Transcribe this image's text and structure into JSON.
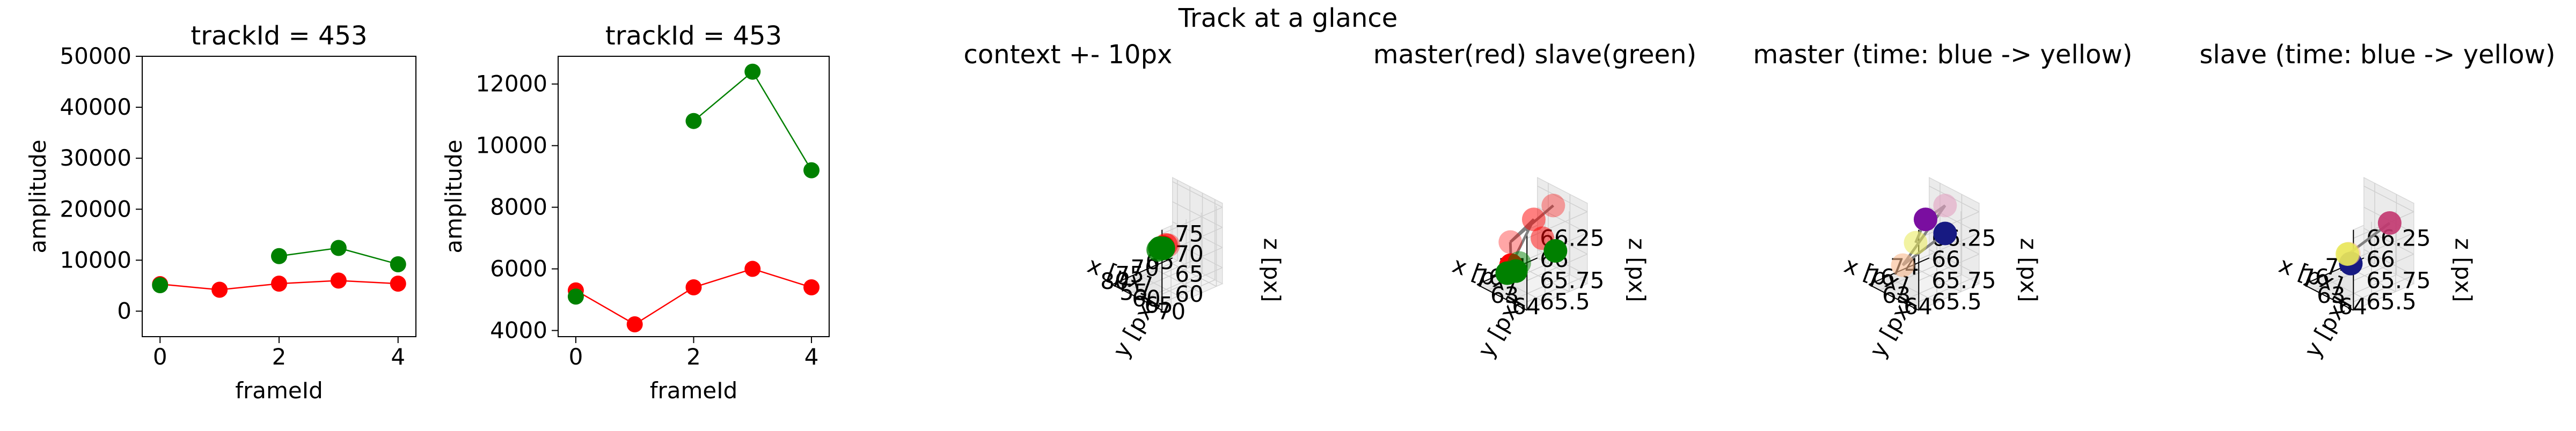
{
  "suptitle": "Track at a glance",
  "colors": {
    "master": "#ff0000",
    "slave": "#008000",
    "path": "#808080",
    "pane_left": "#ebebeb",
    "pane_right": "#f2f2f2",
    "pane_floor": "#e6e6e6",
    "grid": "#d0d0d0"
  },
  "chart_data": [
    {
      "type": "line",
      "title": "trackId = 453",
      "xlabel": "frameId",
      "ylabel": "amplitude",
      "xlim": [
        -0.3,
        4.3
      ],
      "ylim": [
        -5000,
        50000
      ],
      "xticks": [
        0,
        2,
        4
      ],
      "yticks": [
        0,
        10000,
        20000,
        30000,
        40000,
        50000
      ],
      "grid": false,
      "series": [
        {
          "color": "#ff0000",
          "x": [
            0,
            1,
            2,
            3,
            4
          ],
          "y": [
            5300,
            4200,
            5400,
            6000,
            5400
          ]
        },
        {
          "color": "#008000",
          "x": [
            0
          ],
          "y": [
            5100
          ]
        },
        {
          "color": "#008000",
          "x": [
            2,
            3,
            4
          ],
          "y": [
            10800,
            12400,
            9200
          ]
        }
      ]
    },
    {
      "type": "line",
      "title": "trackId = 453",
      "xlabel": "frameId",
      "ylabel": "amplitude",
      "xlim": [
        -0.3,
        4.3
      ],
      "ylim": [
        3800,
        12900
      ],
      "xticks": [
        0,
        2,
        4
      ],
      "yticks": [
        4000,
        6000,
        8000,
        10000,
        12000
      ],
      "grid": false,
      "series": [
        {
          "color": "#ff0000",
          "x": [
            0,
            1,
            2,
            3,
            4
          ],
          "y": [
            5300,
            4200,
            5400,
            6000,
            5400
          ]
        },
        {
          "color": "#008000",
          "x": [
            0
          ],
          "y": [
            5100
          ]
        },
        {
          "color": "#008000",
          "x": [
            2,
            3,
            4
          ],
          "y": [
            10800,
            12400,
            9200
          ]
        }
      ]
    },
    {
      "type": "scatter",
      "title": "context +- 10px",
      "xlabel": "x [px]",
      "ylabel": "y [px]",
      "zlabel": "z [px]",
      "xlim": [
        63,
        83
      ],
      "ylim": [
        53,
        73
      ],
      "zlim": [
        56,
        76
      ],
      "xticks": [
        65,
        70,
        75,
        80
      ],
      "yticks": [
        55,
        60,
        65,
        70
      ],
      "zticks": [
        60,
        65,
        70,
        75
      ],
      "grid": true,
      "series": [
        {
          "color": "#ff0000",
          "x": [
            73.0,
            73.6,
            75.0
          ],
          "y": [
            63.4,
            63.2,
            63.8
          ],
          "z": [
            65.8,
            66.0,
            66.1
          ],
          "alphas": [
            0.35,
            0.6,
            1.0
          ]
        },
        {
          "color": "#008000",
          "x": [
            74.8,
            75.6,
            76.4
          ],
          "y": [
            63.6,
            63.2,
            63.5
          ],
          "z": [
            65.7,
            65.9,
            65.8
          ],
          "alphas": [
            1.0,
            1.0,
            0.8
          ]
        }
      ]
    },
    {
      "type": "scatter",
      "title": "master(red) slave(green)",
      "xlabel": "x [px]",
      "ylabel": "y [px]",
      "zlabel": "z [px]",
      "xlim": [
        72.5,
        77.5
      ],
      "ylim": [
        62.5,
        64.8
      ],
      "zlim": [
        65.4,
        66.35
      ],
      "xticks": [
        74,
        76
      ],
      "yticks": [
        63,
        64
      ],
      "zticks": [
        65.5,
        65.75,
        66.0,
        66.25
      ],
      "grid": true,
      "series": [
        {
          "color": "#ff0000",
          "x": [
            73.7,
            74.6,
            74.6,
            76.0,
            75.4
          ],
          "y": [
            63.9,
            63.5,
            63.9,
            63.2,
            62.9
          ],
          "z": [
            66.28,
            66.12,
            65.95,
            65.9,
            65.55
          ],
          "alphas": [
            0.35,
            0.5,
            0.5,
            0.35,
            1.0
          ]
        },
        {
          "color": "#008000",
          "x": [
            74.6,
            76.8,
            75.8,
            75.9
          ],
          "y": [
            64.5,
            63.9,
            63.5,
            63.0
          ],
          "z": [
            65.88,
            65.7,
            65.68,
            65.5
          ],
          "alphas": [
            1.0,
            1.0,
            0.5,
            1.0
          ]
        }
      ],
      "path": {
        "x": [
          73.7,
          76.0,
          74.6,
          75.4,
          76.0
        ],
        "y": [
          63.9,
          63.2,
          63.5,
          62.9,
          63.2
        ],
        "z": [
          66.28,
          65.9,
          66.12,
          65.55,
          65.9
        ]
      }
    },
    {
      "type": "scatter",
      "title": "master (time: blue -> yellow)",
      "xlabel": "x [px]",
      "ylabel": "y [px]",
      "zlabel": "z [px]",
      "xlim": [
        72.5,
        77.5
      ],
      "ylim": [
        62.5,
        64.8
      ],
      "zlim": [
        65.4,
        66.35
      ],
      "xticks": [
        74,
        76
      ],
      "yticks": [
        63,
        64
      ],
      "zticks": [
        65.5,
        65.75,
        66.0,
        66.25
      ],
      "grid": true,
      "series": [
        {
          "colors": [
            "#171a82",
            "#f9b98e",
            "#e3a2c2",
            "#7a0ea0",
            "#e8ea56"
          ],
          "x": [
            73.7,
            75.4,
            73.7,
            74.6,
            75.6
          ],
          "y": [
            63.9,
            62.9,
            63.9,
            63.5,
            63.6
          ],
          "z": [
            65.95,
            65.55,
            66.28,
            66.12,
            65.92
          ],
          "alphas": [
            1.0,
            0.6,
            0.6,
            1.0,
            0.55
          ]
        }
      ],
      "path": {
        "x": [
          73.7,
          75.4,
          73.7,
          74.6,
          75.6
        ],
        "y": [
          63.9,
          62.9,
          63.9,
          63.5,
          63.6
        ],
        "z": [
          65.95,
          65.55,
          66.28,
          66.12,
          65.92
        ]
      }
    },
    {
      "type": "scatter",
      "title": "slave (time: blue -> yellow)",
      "xlabel": "x [px]",
      "ylabel": "y [px]",
      "zlabel": "z [px]",
      "xlim": [
        72.5,
        77.5
      ],
      "ylim": [
        62.5,
        64.8
      ],
      "zlim": [
        65.4,
        66.35
      ],
      "xticks": [
        74,
        76
      ],
      "yticks": [
        63,
        64
      ],
      "zticks": [
        65.5,
        65.75,
        66.0,
        66.25
      ],
      "grid": true,
      "series": [
        {
          "colors": [
            "#171a82",
            "#f9b98e",
            "#c2366f",
            "#e8ea56"
          ],
          "x": [
            74.3,
            75.0,
            73.6,
            76.2
          ],
          "y": [
            62.9,
            63.2,
            64.3,
            63.8
          ],
          "z": [
            65.5,
            65.7,
            66.12,
            65.85
          ],
          "alphas": [
            1.0,
            0.55,
            0.9,
            0.85
          ]
        }
      ],
      "path": {
        "x": [
          73.6,
          75.0,
          76.2
        ],
        "y": [
          64.3,
          63.2,
          63.8
        ],
        "z": [
          66.12,
          65.7,
          65.85
        ]
      }
    }
  ]
}
